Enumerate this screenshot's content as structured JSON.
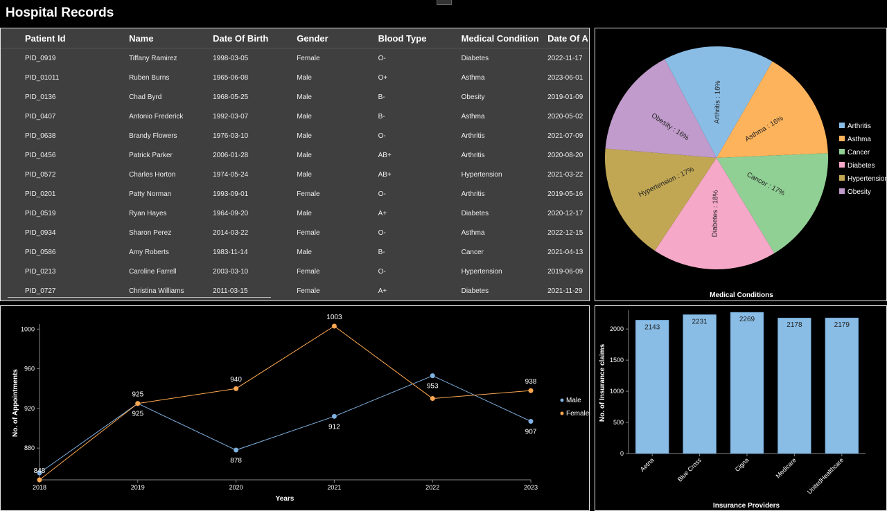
{
  "app": {
    "title": "Hospital Records"
  },
  "table": {
    "columns": [
      "Patient Id",
      "Name",
      "Date Of Birth",
      "Gender",
      "Blood Type",
      "Medical Condition",
      "Date Of A"
    ],
    "rows": [
      [
        "PID_0919",
        "Tiffany Ramirez",
        "1998-03-05",
        "Female",
        "O-",
        "Diabetes",
        "2022-11-17"
      ],
      [
        "PID_01011",
        "Ruben Burns",
        "1965-06-08",
        "Male",
        "O+",
        "Asthma",
        "2023-06-01"
      ],
      [
        "PID_0136",
        "Chad Byrd",
        "1968-05-25",
        "Male",
        "B-",
        "Obesity",
        "2019-01-09"
      ],
      [
        "PID_0407",
        "Antonio Frederick",
        "1992-03-07",
        "Male",
        "B-",
        "Asthma",
        "2020-05-02"
      ],
      [
        "PID_0638",
        "Brandy Flowers",
        "1976-03-10",
        "Male",
        "O-",
        "Arthritis",
        "2021-07-09"
      ],
      [
        "PID_0456",
        "Patrick Parker",
        "2006-01-28",
        "Male",
        "AB+",
        "Arthritis",
        "2020-08-20"
      ],
      [
        "PID_0572",
        "Charles Horton",
        "1974-05-24",
        "Male",
        "AB+",
        "Hypertension",
        "2021-03-22"
      ],
      [
        "PID_0201",
        "Patty Norman",
        "1993-09-01",
        "Female",
        "O-",
        "Arthritis",
        "2019-05-16"
      ],
      [
        "PID_0519",
        "Ryan Hayes",
        "1964-09-20",
        "Male",
        "A+",
        "Diabetes",
        "2020-12-17"
      ],
      [
        "PID_0934",
        "Sharon Perez",
        "2014-03-22",
        "Female",
        "O-",
        "Asthma",
        "2022-12-15"
      ],
      [
        "PID_0586",
        "Amy Roberts",
        "1983-11-14",
        "Male",
        "B-",
        "Cancer",
        "2021-04-13"
      ],
      [
        "PID_0213",
        "Caroline Farrell",
        "2003-03-10",
        "Female",
        "O-",
        "Hypertension",
        "2019-06-09"
      ],
      [
        "PID_0727",
        "Christina Williams",
        "2011-03-15",
        "Female",
        "A+",
        "Diabetes",
        "2021-11-29"
      ]
    ]
  },
  "chart_data": [
    {
      "type": "pie",
      "title": "Medical Conditions",
      "legend": "right",
      "slices": [
        {
          "label": "Asthma",
          "value": 16,
          "display": "Asthma : 16%",
          "color": "#fdb35b"
        },
        {
          "label": "Cancer",
          "value": 17,
          "display": "Cancer : 17%",
          "color": "#90d094"
        },
        {
          "label": "Diabetes",
          "value": 18,
          "display": "Diabetes : 18%",
          "color": "#f5a8c8"
        },
        {
          "label": "Hypertension",
          "value": 17,
          "display": "Hypertension : 17%",
          "color": "#c1a754"
        },
        {
          "label": "Obesity",
          "value": 16,
          "display": "Obesity : 16%",
          "color": "#c09bcb"
        },
        {
          "label": "Arthritis",
          "value": 16,
          "display": "Arthritis : 16%",
          "color": "#89bde6"
        }
      ],
      "legend_items": [
        {
          "label": "Arthritis",
          "color": "#89bde6"
        },
        {
          "label": "Asthma",
          "color": "#fdb35b"
        },
        {
          "label": "Cancer",
          "color": "#90d094"
        },
        {
          "label": "Diabetes",
          "color": "#f5a8c8"
        },
        {
          "label": "Hypertension",
          "color": "#c1a754"
        },
        {
          "label": "Obesity",
          "color": "#c09bcb"
        }
      ]
    },
    {
      "type": "line",
      "xlabel": "Years",
      "ylabel": "No. of Appointments",
      "x": [
        "2018",
        "2019",
        "2020",
        "2021",
        "2022",
        "2023"
      ],
      "ylim": [
        848,
        1003
      ],
      "yticks": [
        880,
        920,
        960,
        1000
      ],
      "legend": "right",
      "series": [
        {
          "name": "Male",
          "color": "#7fb1e0",
          "values": [
            855,
            925,
            878,
            912,
            953,
            907
          ],
          "labels": [
            "",
            "925",
            "878",
            "912",
            "953",
            "907"
          ]
        },
        {
          "name": "Female",
          "color": "#fda850",
          "values": [
            848,
            925,
            940,
            1003,
            930,
            938
          ],
          "labels": [
            "848",
            "925",
            "940",
            "1003",
            "",
            "938"
          ]
        }
      ]
    },
    {
      "type": "bar",
      "xlabel": "Insurance Providers",
      "ylabel": "No. of Insurance claims",
      "categories": [
        "Aetna",
        "Blue Cross",
        "Cigna",
        "Medicare",
        "UnitedHealthcare"
      ],
      "values": [
        2143,
        2231,
        2269,
        2178,
        2179
      ],
      "ylim": [
        0,
        2280
      ],
      "yticks": [
        0,
        500,
        1000,
        1500,
        2000
      ],
      "color": "#89bde6"
    }
  ]
}
